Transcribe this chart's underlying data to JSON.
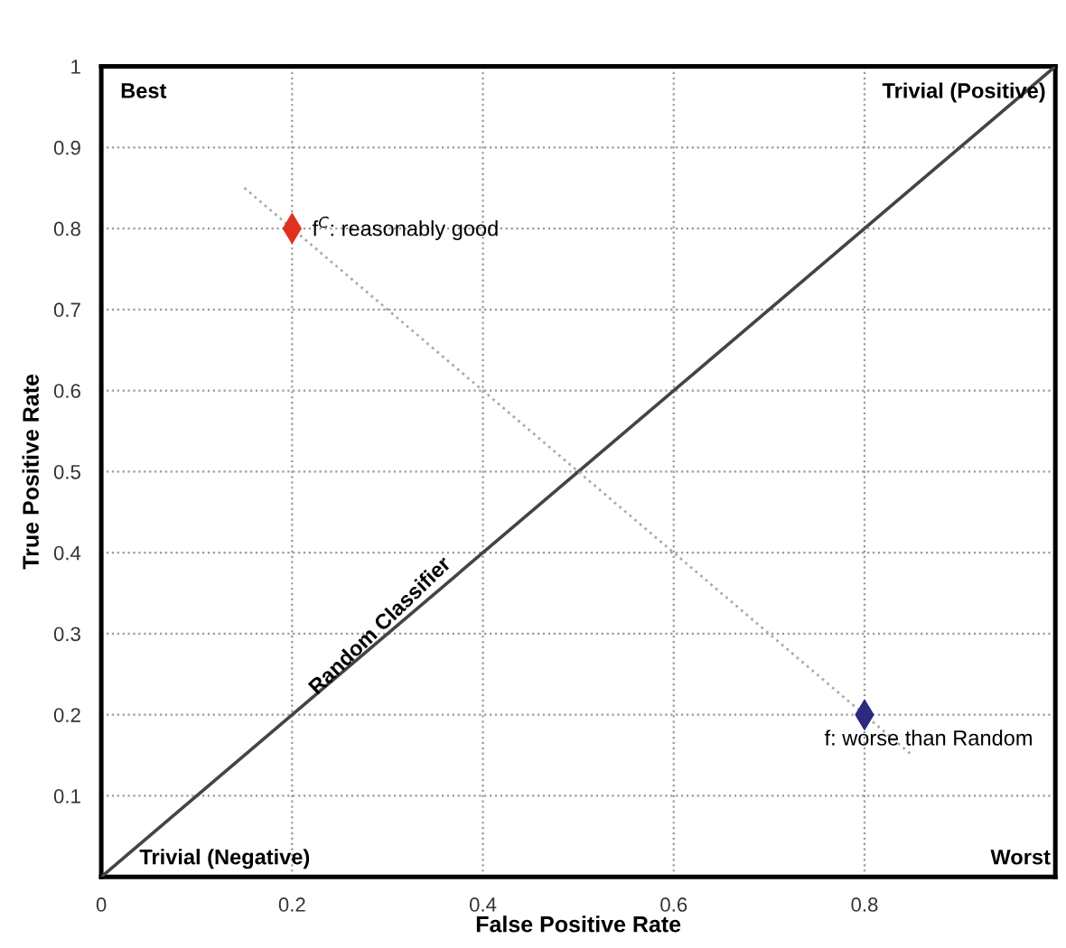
{
  "chart_data": {
    "type": "scatter",
    "xlabel": "False Positive Rate",
    "ylabel": "True Positive Rate",
    "xlim": [
      0,
      1
    ],
    "ylim": [
      0,
      1
    ],
    "xticks": [
      0,
      0.2,
      0.4,
      0.6,
      0.8
    ],
    "yticks": [
      0.1,
      0.2,
      0.3,
      0.4,
      0.5,
      0.6,
      0.7,
      0.8,
      0.9,
      1
    ],
    "grid": true,
    "legend": false,
    "series": [
      {
        "type": "line",
        "color": "#444444",
        "line_style": "solid",
        "x": [
          0,
          1
        ],
        "values": [
          0,
          1
        ]
      },
      {
        "type": "line",
        "color": "#aaaaaa",
        "line_style": "dotted",
        "x": [
          0.15,
          0.85
        ],
        "values": [
          0.85,
          0.15
        ]
      },
      {
        "marker": "diamond",
        "color": "#e03020",
        "x": [
          0.2
        ],
        "values": [
          0.8
        ]
      },
      {
        "marker": "diamond",
        "color": "#2a2a80",
        "x": [
          0.8
        ],
        "values": [
          0.2
        ]
      }
    ],
    "annotations": [
      {
        "text": "f$^{C}$: reasonably good",
        "x": 0.2,
        "y": 0.8
      },
      {
        "text": "f: worse than Random",
        "x": 0.8,
        "y": 0.2
      },
      {
        "text": "Random Classifier",
        "x": 0.3,
        "y": 0.3
      },
      "Best",
      "Trivial (Positive)",
      "Trivial (Negative)",
      "Worst"
    ]
  }
}
